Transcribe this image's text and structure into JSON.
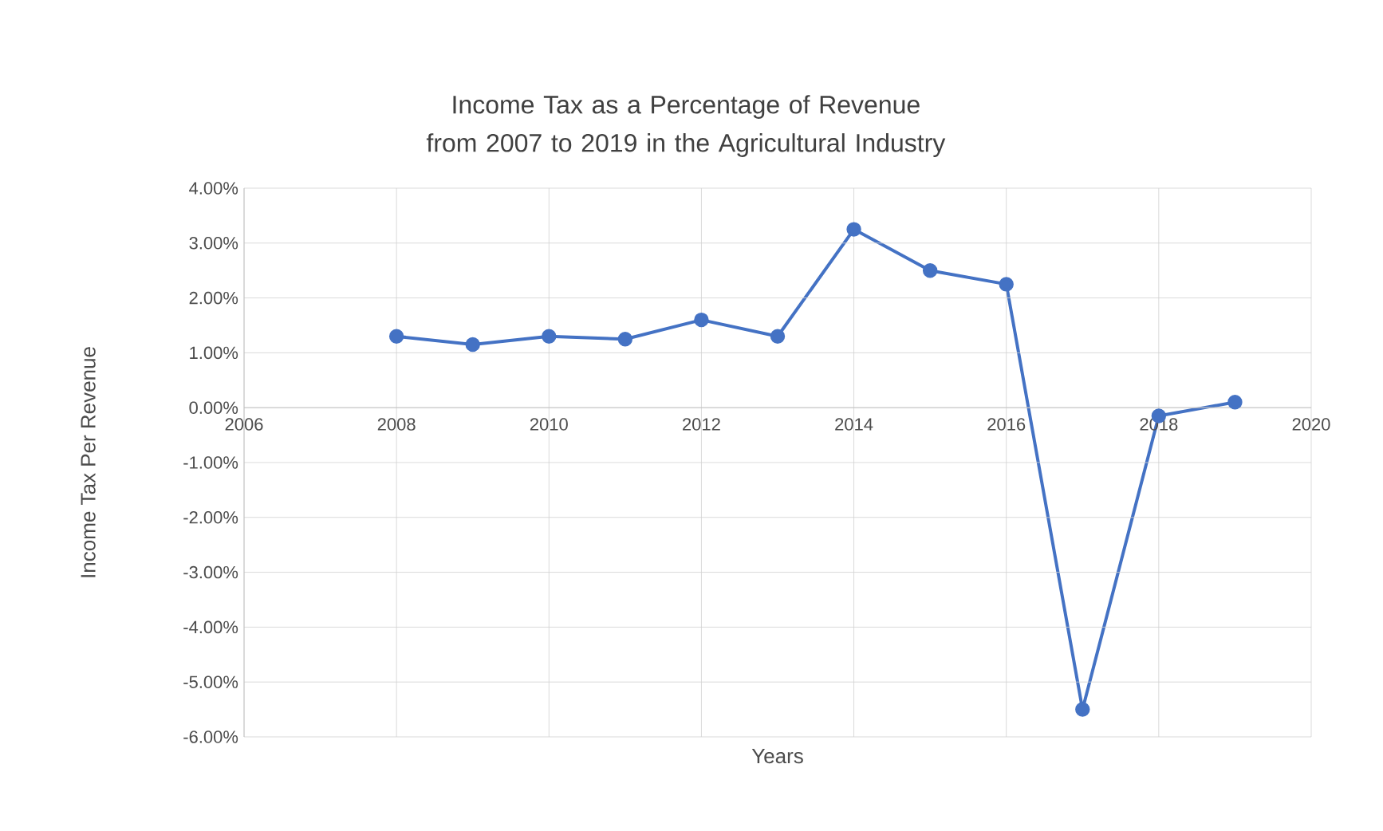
{
  "chart_data": {
    "type": "line",
    "title": "Income Tax as a Percentage of Revenue from 2007 to 2019  in the Agricultural Industry",
    "xlabel": "Years",
    "ylabel": "Income Tax Per Revenue",
    "x": [
      2008,
      2009,
      2010,
      2011,
      2012,
      2013,
      2014,
      2015,
      2016,
      2017,
      2018,
      2019
    ],
    "series": [
      {
        "color": "#4472c4",
        "values": [
          1.3,
          1.15,
          1.3,
          1.25,
          1.6,
          1.3,
          3.25,
          2.5,
          2.25,
          -5.5,
          -0.15,
          0.1
        ]
      }
    ],
    "xlim": [
      2006,
      2020
    ],
    "xticks": [
      2006,
      2008,
      2010,
      2012,
      2014,
      2016,
      2018,
      2020
    ],
    "ylim": [
      -6,
      4
    ],
    "yticks": [
      {
        "value": -6,
        "label": "-6.00%"
      },
      {
        "value": -5,
        "label": "-5.00%"
      },
      {
        "value": -4,
        "label": "-4.00%"
      },
      {
        "value": -3,
        "label": "-3.00%"
      },
      {
        "value": -2,
        "label": "-2.00%"
      },
      {
        "value": -1,
        "label": "-1.00%"
      },
      {
        "value": 0,
        "label": "0.00%"
      },
      {
        "value": 1,
        "label": "1.00%"
      },
      {
        "value": 2,
        "label": "2.00%"
      },
      {
        "value": 3,
        "label": "3.00%"
      },
      {
        "value": 4,
        "label": "4.00%"
      }
    ],
    "grid": true,
    "marker": "circle",
    "line_style": "solid"
  }
}
